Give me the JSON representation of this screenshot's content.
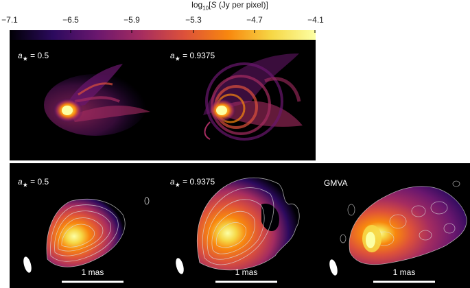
{
  "colorbar": {
    "title_log": "log",
    "title_sub": "10",
    "title_rest_open": "[",
    "title_var": "S",
    "title_unit": " (Jy per pixel)]",
    "ticks": [
      "−7.1",
      "−6.5",
      "−5.9",
      "−5.3",
      "−4.7",
      "−4.1"
    ],
    "colormap": [
      "#000004",
      "#2c0a5e",
      "#6a176e",
      "#a52c60",
      "#dd513a",
      "#f8870e",
      "#f6d746",
      "#fcffa4"
    ]
  },
  "panels": {
    "sim_a": {
      "spin_var": "a",
      "spin_sub": "★",
      "spin_value": " = 0.5"
    },
    "sim_b": {
      "spin_var": "a",
      "spin_sub": "★",
      "spin_value": " = 0.9375"
    },
    "obs_a": {
      "spin_var": "a",
      "spin_sub": "★",
      "spin_value": " = 0.5",
      "scale": "1 mas"
    },
    "obs_b": {
      "spin_var": "a",
      "spin_sub": "★",
      "spin_value": " = 0.9375",
      "scale": "1 mas"
    },
    "obs_c": {
      "label": "GMVA",
      "scale": "1 mas"
    }
  }
}
